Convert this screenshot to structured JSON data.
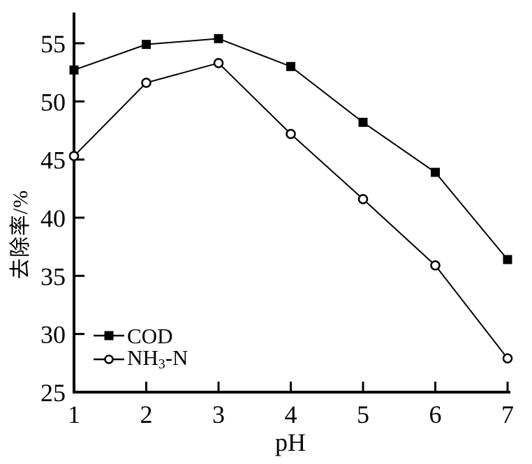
{
  "chart_data": {
    "type": "line",
    "title": "",
    "xlabel": "pH",
    "ylabel": "去除率/%",
    "x": [
      1,
      2,
      3,
      4,
      5,
      6,
      7
    ],
    "xticks": [
      1,
      2,
      3,
      4,
      5,
      6,
      7
    ],
    "yticks": [
      25,
      30,
      35,
      40,
      45,
      50,
      55
    ],
    "xlim": [
      1,
      7
    ],
    "ylim": [
      25,
      57.5
    ],
    "grid": false,
    "legend_position": "lower-left",
    "series": [
      {
        "name": "COD",
        "marker": "filled-square",
        "color": "#000000",
        "values": [
          52.7,
          54.9,
          55.4,
          53.0,
          48.2,
          43.9,
          36.4
        ]
      },
      {
        "name": "NH3-N",
        "marker": "open-circle",
        "color": "#000000",
        "values": [
          45.3,
          51.6,
          53.3,
          47.2,
          41.6,
          35.9,
          27.9
        ]
      }
    ]
  },
  "legend": {
    "items": [
      {
        "label": "COD",
        "marker": "filled-square"
      },
      {
        "label": "NH3-N",
        "label_pre": "NH",
        "label_sub": "3",
        "label_post": "-N",
        "marker": "open-circle"
      }
    ]
  },
  "colors": {
    "foreground": "#000000",
    "background": "#ffffff"
  }
}
